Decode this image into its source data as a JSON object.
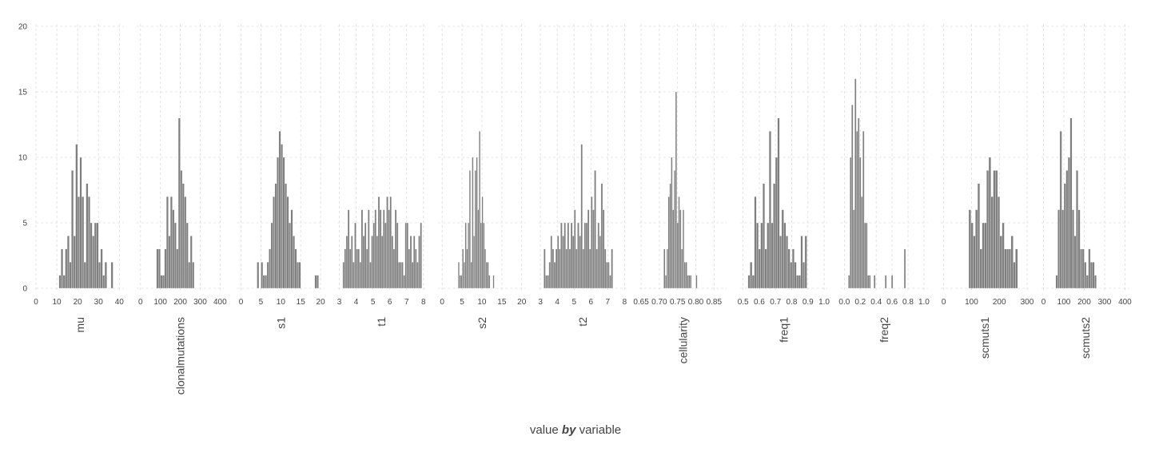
{
  "chart_data": {
    "type": "bar",
    "subtype": "faceted-histogram",
    "caption": {
      "part1": "value ",
      "part2": "by",
      "part3": " variable"
    },
    "ylim": [
      0,
      20
    ],
    "yticks": [
      "0",
      "5",
      "10",
      "15",
      "20"
    ],
    "grid": true,
    "bar_color": "#7f7f7f",
    "panels": [
      {
        "name": "mu",
        "xlim": [
          0,
          42
        ],
        "xticks": [
          0,
          10,
          20,
          30,
          40
        ],
        "xtick_labels": [
          "0",
          "10",
          "20",
          "30",
          "40"
        ],
        "bin_start": 11,
        "bin_width": 1,
        "counts": [
          1,
          3,
          1,
          3,
          4,
          2,
          9,
          4,
          11,
          7,
          10,
          7,
          2,
          8,
          7,
          5,
          4,
          5,
          5,
          2,
          3,
          1,
          2,
          0,
          0,
          2
        ]
      },
      {
        "name": "clonalmutations",
        "xlim": [
          -20,
          420
        ],
        "xticks": [
          0,
          100,
          200,
          300,
          400
        ],
        "xtick_labels": [
          "0",
          "100",
          "200",
          "300",
          "400"
        ],
        "bin_start": 80,
        "bin_width": 10,
        "counts": [
          3,
          3,
          1,
          1,
          3,
          7,
          4,
          7,
          6,
          5,
          3,
          13,
          9,
          8,
          7,
          5,
          2,
          4,
          2
        ]
      },
      {
        "name": "s1",
        "xlim": [
          -1,
          21
        ],
        "xticks": [
          0,
          5,
          10,
          15,
          20
        ],
        "xtick_labels": [
          "0",
          "5",
          "10",
          "15",
          "20"
        ],
        "bin_start": 4,
        "bin_width": 0.5,
        "counts": [
          2,
          0,
          2,
          1,
          1,
          2,
          3,
          5,
          7,
          8,
          10,
          12,
          11,
          10,
          8,
          7,
          5,
          6,
          4,
          3,
          2,
          2,
          0,
          0,
          0,
          0,
          0,
          0,
          0,
          1,
          1
        ]
      },
      {
        "name": "t1",
        "xlim": [
          2.9,
          8.1
        ],
        "xticks": [
          3,
          4,
          5,
          6,
          7,
          8
        ],
        "xtick_labels": [
          "3",
          "4",
          "5",
          "6",
          "7",
          "8"
        ],
        "bin_start": 3.2,
        "bin_width": 0.1,
        "counts": [
          2,
          3,
          4,
          6,
          3,
          4,
          2,
          5,
          3,
          3,
          2,
          6,
          4,
          5,
          3,
          6,
          2,
          4,
          5,
          6,
          4,
          7,
          6,
          4,
          6,
          5,
          7,
          6,
          7,
          4,
          3,
          6,
          5,
          2,
          2,
          2,
          1,
          5,
          5,
          3,
          4,
          2,
          4,
          3,
          2,
          4,
          5
        ]
      },
      {
        "name": "s2",
        "xlim": [
          -1,
          21
        ],
        "xticks": [
          0,
          5,
          10,
          15,
          20
        ],
        "xtick_labels": [
          "0",
          "5",
          "10",
          "15",
          "20"
        ],
        "bin_start": 4,
        "bin_width": 0.35,
        "counts": [
          2,
          1,
          1,
          3,
          2,
          5,
          3,
          5,
          9,
          2,
          10,
          4,
          9,
          10,
          6,
          12,
          5,
          7,
          5,
          3,
          2,
          2,
          1,
          0,
          0,
          1
        ]
      },
      {
        "name": "t2",
        "xlim": [
          2.9,
          8.1
        ],
        "xticks": [
          3,
          4,
          5,
          6,
          7,
          8
        ],
        "xtick_labels": [
          "3",
          "4",
          "5",
          "6",
          "7",
          "8"
        ],
        "bin_start": 3.2,
        "bin_width": 0.1,
        "counts": [
          3,
          1,
          1,
          2,
          4,
          3,
          2,
          3,
          4,
          3,
          5,
          4,
          5,
          3,
          5,
          3,
          5,
          4,
          6,
          3,
          5,
          4,
          11,
          3,
          5,
          5,
          6,
          3,
          7,
          6,
          9,
          3,
          5,
          4,
          8,
          6,
          3,
          2,
          2,
          1,
          3
        ]
      },
      {
        "name": "cellularity",
        "xlim": [
          0.645,
          0.885
        ],
        "xticks": [
          0.65,
          0.7,
          0.75,
          0.8,
          0.85
        ],
        "xtick_labels": [
          "0.65",
          "0.70",
          "0.75",
          "0.80",
          "0.85"
        ],
        "bin_start": 0.712,
        "bin_width": 0.004,
        "counts": [
          3,
          1,
          3,
          7,
          8,
          10,
          6,
          9,
          15,
          5,
          7,
          6,
          3,
          6,
          2,
          2,
          1,
          1,
          1,
          0,
          0,
          0,
          1
        ]
      },
      {
        "name": "freq1",
        "xlim": [
          0.48,
          1.02
        ],
        "xticks": [
          0.5,
          0.6,
          0.7,
          0.8,
          0.9,
          1.0
        ],
        "xtick_labels": [
          "0.5",
          "0.6",
          "0.7",
          "0.8",
          "0.9",
          "1.0"
        ],
        "bin_start": 0.53,
        "bin_width": 0.013,
        "counts": [
          1,
          2,
          1,
          7,
          5,
          3,
          5,
          8,
          3,
          5,
          12,
          5,
          8,
          10,
          13,
          4,
          6,
          5,
          4,
          3,
          2,
          3,
          2,
          1,
          1,
          4,
          2,
          4
        ]
      },
      {
        "name": "freq2",
        "xlim": [
          -0.05,
          1.05
        ],
        "xticks": [
          0,
          0.2,
          0.4,
          0.6,
          0.8,
          1.0
        ],
        "xtick_labels": [
          "0.0",
          "0.2",
          "0.4",
          "0.6",
          "0.8",
          "1.0"
        ],
        "bin_start": 0.05,
        "bin_width": 0.02,
        "counts": [
          1,
          10,
          14,
          6,
          16,
          12,
          13,
          10,
          7,
          12,
          5,
          5,
          1,
          1,
          0,
          0,
          1,
          0,
          0,
          0,
          0,
          0,
          0,
          1,
          0,
          0,
          0,
          1,
          0,
          0,
          0,
          0,
          0,
          0,
          0,
          3
        ]
      },
      {
        "name": "scmuts1",
        "xlim": [
          -10,
          305
        ],
        "xticks": [
          0,
          100,
          200,
          300
        ],
        "xtick_labels": [
          "0",
          "100",
          "200",
          "300"
        ],
        "bin_start": 90,
        "bin_width": 8,
        "counts": [
          6,
          5,
          4,
          6,
          8,
          3,
          5,
          5,
          9,
          10,
          7,
          9,
          9,
          7,
          4,
          5,
          3,
          3,
          3,
          4,
          2,
          3,
          0
        ]
      },
      {
        "name": "scmuts2",
        "xlim": [
          -10,
          420
        ],
        "xticks": [
          0,
          100,
          200,
          300,
          400
        ],
        "xtick_labels": [
          "0",
          "100",
          "200",
          "300",
          "400"
        ],
        "bin_start": 60,
        "bin_width": 10,
        "counts": [
          1,
          6,
          12,
          6,
          8,
          9,
          10,
          13,
          6,
          4,
          9,
          6,
          3,
          3,
          2,
          1,
          3,
          2,
          2,
          1
        ]
      }
    ]
  }
}
